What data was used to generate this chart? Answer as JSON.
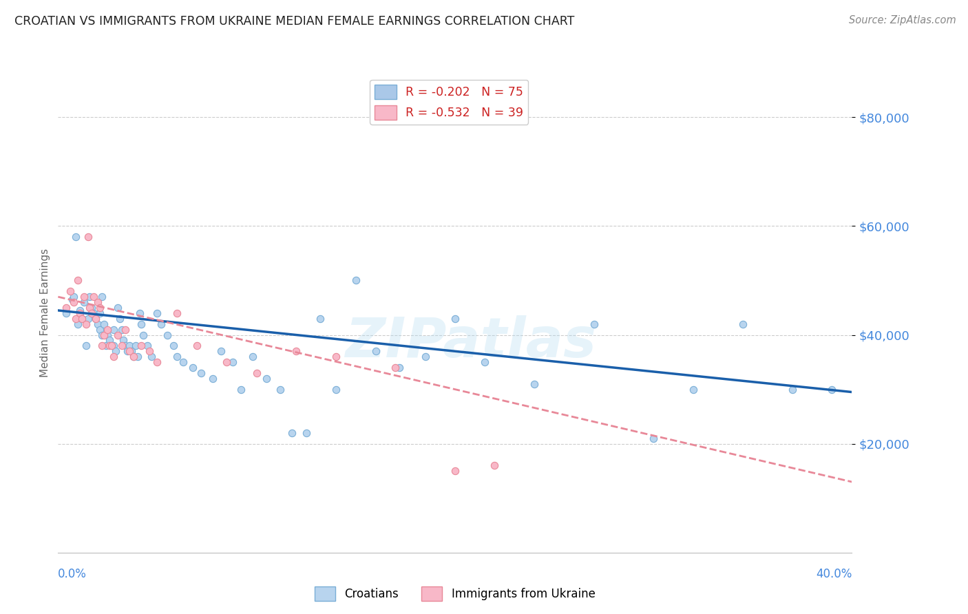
{
  "title": "CROATIAN VS IMMIGRANTS FROM UKRAINE MEDIAN FEMALE EARNINGS CORRELATION CHART",
  "source": "Source: ZipAtlas.com",
  "ylabel": "Median Female Earnings",
  "xlim": [
    0.0,
    0.4
  ],
  "ylim": [
    0,
    88000
  ],
  "watermark": "ZIPatlas",
  "legend_entries": [
    {
      "label": "R = -0.202   N = 75",
      "facecolor": "#aac8e8",
      "edgecolor": "#7aaed6"
    },
    {
      "label": "R = -0.532   N = 39",
      "facecolor": "#f8b8c8",
      "edgecolor": "#e88898"
    }
  ],
  "croatians_x": [
    0.004,
    0.007,
    0.008,
    0.009,
    0.01,
    0.011,
    0.012,
    0.013,
    0.014,
    0.015,
    0.016,
    0.017,
    0.018,
    0.019,
    0.02,
    0.021,
    0.021,
    0.022,
    0.022,
    0.023,
    0.024,
    0.025,
    0.026,
    0.027,
    0.028,
    0.028,
    0.029,
    0.03,
    0.031,
    0.032,
    0.033,
    0.034,
    0.035,
    0.036,
    0.037,
    0.038,
    0.039,
    0.04,
    0.041,
    0.042,
    0.043,
    0.045,
    0.047,
    0.05,
    0.052,
    0.055,
    0.058,
    0.06,
    0.063,
    0.068,
    0.072,
    0.078,
    0.082,
    0.088,
    0.092,
    0.098,
    0.105,
    0.112,
    0.118,
    0.125,
    0.132,
    0.14,
    0.15,
    0.16,
    0.172,
    0.185,
    0.2,
    0.215,
    0.24,
    0.27,
    0.3,
    0.32,
    0.345,
    0.37,
    0.39
  ],
  "croatians_y": [
    44000,
    46500,
    47000,
    58000,
    42000,
    44500,
    43000,
    46000,
    38000,
    43000,
    47000,
    45000,
    44000,
    43000,
    42000,
    44000,
    41000,
    47000,
    40000,
    42000,
    38000,
    40000,
    39000,
    38000,
    41000,
    38000,
    37000,
    45000,
    43000,
    41000,
    39000,
    38000,
    37000,
    38000,
    37000,
    36000,
    38000,
    36000,
    44000,
    42000,
    40000,
    38000,
    36000,
    44000,
    42000,
    40000,
    38000,
    36000,
    35000,
    34000,
    33000,
    32000,
    37000,
    35000,
    30000,
    36000,
    32000,
    30000,
    22000,
    22000,
    43000,
    30000,
    50000,
    37000,
    34000,
    36000,
    43000,
    35000,
    31000,
    42000,
    21000,
    30000,
    42000,
    30000,
    30000
  ],
  "ukraine_x": [
    0.004,
    0.006,
    0.008,
    0.009,
    0.01,
    0.011,
    0.012,
    0.013,
    0.014,
    0.015,
    0.016,
    0.017,
    0.018,
    0.019,
    0.02,
    0.021,
    0.022,
    0.023,
    0.025,
    0.026,
    0.027,
    0.028,
    0.03,
    0.032,
    0.034,
    0.036,
    0.038,
    0.042,
    0.046,
    0.05,
    0.06,
    0.07,
    0.085,
    0.1,
    0.12,
    0.14,
    0.17,
    0.2,
    0.22
  ],
  "ukraine_y": [
    45000,
    48000,
    46000,
    43000,
    50000,
    44000,
    43000,
    47000,
    42000,
    58000,
    45000,
    44000,
    47000,
    43000,
    46000,
    45000,
    38000,
    40000,
    41000,
    38000,
    38000,
    36000,
    40000,
    38000,
    41000,
    37000,
    36000,
    38000,
    37000,
    35000,
    44000,
    38000,
    35000,
    33000,
    37000,
    36000,
    34000,
    15000,
    16000
  ],
  "cr_color": "#b8d4ee",
  "cr_edge": "#7aaed6",
  "uk_color": "#f8b8c8",
  "uk_edge": "#e88898",
  "cr_trend_x": [
    0.0,
    0.4
  ],
  "cr_trend_y": [
    44500,
    29500
  ],
  "uk_trend_x": [
    0.0,
    0.4
  ],
  "uk_trend_y": [
    47000,
    13000
  ],
  "cr_trend_color": "#1a5faa",
  "uk_trend_color": "#e88898",
  "yticks": [
    20000,
    40000,
    60000,
    80000
  ],
  "ytick_labels": [
    "$20,000",
    "$40,000",
    "$60,000",
    "$80,000"
  ],
  "ytick_color": "#4488dd",
  "grid_color": "#cccccc",
  "title_color": "#222222",
  "source_color": "#888888",
  "axis_label_color": "#4488dd",
  "ylabel_color": "#666666",
  "background_color": "#ffffff",
  "watermark_color": "#add8f0",
  "watermark_alpha": 0.3,
  "scatter_size": 55,
  "scatter_lw": 0.8
}
